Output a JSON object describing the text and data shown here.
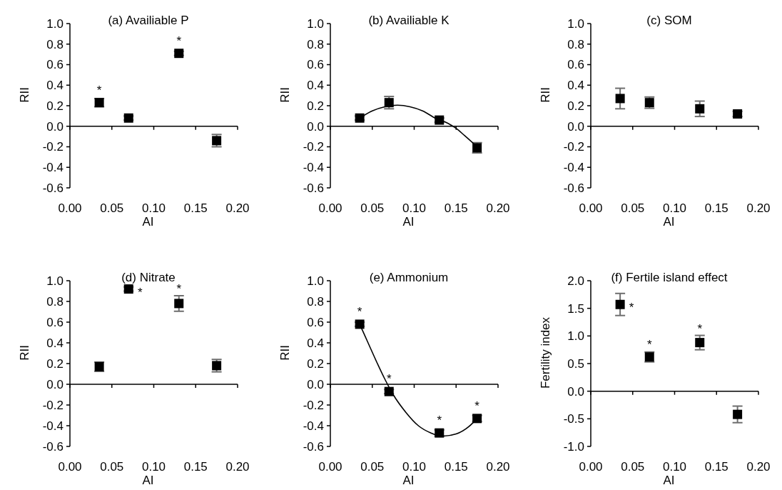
{
  "chart_data": [
    {
      "type": "scatter",
      "title": "(a) Availiable P",
      "xlabel": "AI",
      "ylabel": "RII",
      "marker": "square",
      "x": [
        0.035,
        0.07,
        0.13,
        0.175
      ],
      "series": [
        {
          "color": "#000000",
          "values": [
            0.23,
            0.08,
            0.71,
            -0.14
          ],
          "errors": [
            0.04,
            0.02,
            0.02,
            0.06
          ]
        }
      ],
      "xlim": [
        0,
        0.2
      ],
      "xticks": [
        {
          "value": 0,
          "label": "0.00"
        },
        {
          "value": 0.05,
          "label": "0.05"
        },
        {
          "value": 0.1,
          "label": "0.10"
        },
        {
          "value": 0.15,
          "label": "0.15"
        },
        {
          "value": 0.2,
          "label": "0.20"
        }
      ],
      "ylim": [
        -0.6,
        1
      ],
      "yticks": [
        {
          "value": -0.6,
          "label": "-0.6"
        },
        {
          "value": -0.4,
          "label": "-0.4"
        },
        {
          "value": -0.2,
          "label": "-0.2"
        },
        {
          "value": 0,
          "label": "0.0"
        },
        {
          "value": 0.2,
          "label": "0.2"
        },
        {
          "value": 0.4,
          "label": "0.4"
        },
        {
          "value": 0.6,
          "label": "0.6"
        },
        {
          "value": 0.8,
          "label": "0.8"
        },
        {
          "value": 1,
          "label": "1.0"
        }
      ],
      "annotations": [
        {
          "text": "*",
          "x": 0.035,
          "y": 0.23
        },
        {
          "text": "*",
          "x": 0.13,
          "y": 0.71
        }
      ]
    },
    {
      "type": "scatter",
      "title": "(b) Availiable K",
      "xlabel": "AI",
      "ylabel": "RII",
      "marker": "square",
      "x": [
        0.035,
        0.07,
        0.13,
        0.175
      ],
      "series": [
        {
          "color": "#000000",
          "values": [
            0.08,
            0.23,
            0.06,
            -0.21
          ],
          "errors": [
            0.02,
            0.06,
            0.02,
            0.05
          ]
        },
        {
          "type": "line",
          "marker": "none",
          "color": "#000000",
          "x": [
            0.035,
            0.05,
            0.065,
            0.08,
            0.095,
            0.11,
            0.125,
            0.14,
            0.15,
            0.16,
            0.175
          ],
          "values": [
            0.08,
            0.15,
            0.19,
            0.205,
            0.19,
            0.15,
            0.08,
            0.03,
            -0.02,
            -0.09,
            -0.2
          ]
        }
      ],
      "xlim": [
        0,
        0.2
      ],
      "xticks": [
        {
          "value": 0,
          "label": "0.00"
        },
        {
          "value": 0.05,
          "label": "0.05"
        },
        {
          "value": 0.1,
          "label": "0.10"
        },
        {
          "value": 0.15,
          "label": "0.15"
        },
        {
          "value": 0.2,
          "label": "0.20"
        }
      ],
      "ylim": [
        -0.6,
        1
      ],
      "yticks": [
        {
          "value": -0.6,
          "label": "-0.6"
        },
        {
          "value": -0.4,
          "label": "-0.4"
        },
        {
          "value": -0.2,
          "label": "-0.2"
        },
        {
          "value": 0,
          "label": "0.0"
        },
        {
          "value": 0.2,
          "label": "0.2"
        },
        {
          "value": 0.4,
          "label": "0.4"
        },
        {
          "value": 0.6,
          "label": "0.6"
        },
        {
          "value": 0.8,
          "label": "0.8"
        },
        {
          "value": 1,
          "label": "1.0"
        }
      ]
    },
    {
      "type": "scatter",
      "title": "(c) SOM",
      "xlabel": "AI",
      "ylabel": "RII",
      "marker": "square",
      "x": [
        0.035,
        0.07,
        0.13,
        0.175
      ],
      "series": [
        {
          "color": "#000000",
          "values": [
            0.27,
            0.23,
            0.17,
            0.12
          ],
          "errors": [
            0.1,
            0.055,
            0.075,
            0.025
          ]
        }
      ],
      "xlim": [
        0,
        0.2
      ],
      "xticks": [
        {
          "value": 0,
          "label": "0.00"
        },
        {
          "value": 0.05,
          "label": "0.05"
        },
        {
          "value": 0.1,
          "label": "0.10"
        },
        {
          "value": 0.15,
          "label": "0.15"
        },
        {
          "value": 0.2,
          "label": "0.20"
        }
      ],
      "ylim": [
        -0.6,
        1
      ],
      "yticks": [
        {
          "value": -0.6,
          "label": "-0.6"
        },
        {
          "value": -0.4,
          "label": "-0.4"
        },
        {
          "value": -0.2,
          "label": "-0.2"
        },
        {
          "value": 0,
          "label": "0.0"
        },
        {
          "value": 0.2,
          "label": "0.2"
        },
        {
          "value": 0.4,
          "label": "0.4"
        },
        {
          "value": 0.6,
          "label": "0.6"
        },
        {
          "value": 0.8,
          "label": "0.8"
        },
        {
          "value": 1,
          "label": "1.0"
        }
      ]
    },
    {
      "type": "scatter",
      "title": "(d) Nitrate",
      "xlabel": "AI",
      "ylabel": "RII",
      "marker": "square",
      "x": [
        0.035,
        0.07,
        0.13,
        0.175
      ],
      "series": [
        {
          "color": "#000000",
          "values": [
            0.17,
            0.92,
            0.78,
            0.18
          ],
          "errors": [
            0.045,
            0.02,
            0.075,
            0.06
          ]
        }
      ],
      "xlim": [
        0,
        0.2
      ],
      "xticks": [
        {
          "value": 0,
          "label": "0.00"
        },
        {
          "value": 0.05,
          "label": "0.05"
        },
        {
          "value": 0.1,
          "label": "0.10"
        },
        {
          "value": 0.15,
          "label": "0.15"
        },
        {
          "value": 0.2,
          "label": "0.20"
        }
      ],
      "ylim": [
        -0.6,
        1
      ],
      "yticks": [
        {
          "value": -0.6,
          "label": "-0.6"
        },
        {
          "value": -0.4,
          "label": "-0.4"
        },
        {
          "value": -0.2,
          "label": "-0.2"
        },
        {
          "value": 0,
          "label": "0.0"
        },
        {
          "value": 0.2,
          "label": "0.2"
        },
        {
          "value": 0.4,
          "label": "0.4"
        },
        {
          "value": 0.6,
          "label": "0.6"
        },
        {
          "value": 0.8,
          "label": "0.8"
        },
        {
          "value": 1,
          "label": "1.0"
        }
      ],
      "annotations": [
        {
          "text": "*",
          "x": 0.07,
          "y": 0.92
        },
        {
          "text": "*",
          "x": 0.13,
          "y": 0.78
        }
      ]
    },
    {
      "type": "scatter",
      "title": "(e) Ammonium",
      "xlabel": "AI",
      "ylabel": "RII",
      "marker": "square",
      "x": [
        0.035,
        0.07,
        0.13,
        0.175
      ],
      "series": [
        {
          "color": "#000000",
          "values": [
            0.58,
            -0.07,
            -0.47,
            -0.33
          ],
          "errors": [
            0.02,
            0.02,
            0.03,
            0.03
          ]
        },
        {
          "type": "line",
          "marker": "none",
          "color": "#000000",
          "x": [
            0.035,
            0.045,
            0.055,
            0.065,
            0.075,
            0.09,
            0.105,
            0.12,
            0.135,
            0.15,
            0.165,
            0.175
          ],
          "values": [
            0.58,
            0.4,
            0.22,
            0.05,
            -0.1,
            -0.27,
            -0.4,
            -0.47,
            -0.5,
            -0.48,
            -0.41,
            -0.33
          ]
        }
      ],
      "xlim": [
        0,
        0.2
      ],
      "xticks": [
        {
          "value": 0,
          "label": "0.00"
        },
        {
          "value": 0.05,
          "label": "0.05"
        },
        {
          "value": 0.1,
          "label": "0.10"
        },
        {
          "value": 0.15,
          "label": "0.15"
        },
        {
          "value": 0.2,
          "label": "0.20"
        }
      ],
      "ylim": [
        -0.6,
        1
      ],
      "yticks": [
        {
          "value": -0.6,
          "label": "-0.6"
        },
        {
          "value": -0.4,
          "label": "-0.4"
        },
        {
          "value": -0.2,
          "label": "-0.2"
        },
        {
          "value": 0,
          "label": "0.0"
        },
        {
          "value": 0.2,
          "label": "0.2"
        },
        {
          "value": 0.4,
          "label": "0.4"
        },
        {
          "value": 0.6,
          "label": "0.6"
        },
        {
          "value": 0.8,
          "label": "0.8"
        },
        {
          "value": 1,
          "label": "1.0"
        }
      ],
      "annotations": [
        {
          "text": "*",
          "x": 0.035,
          "y": 0.58
        },
        {
          "text": "*",
          "x": 0.07,
          "y": -0.07
        },
        {
          "text": "*",
          "x": 0.13,
          "y": -0.47
        },
        {
          "text": "*",
          "x": 0.175,
          "y": -0.33
        }
      ]
    },
    {
      "type": "scatter",
      "title": "(f) Fertile island effect",
      "xlabel": "AI",
      "ylabel": "Fertility index",
      "marker": "square",
      "x": [
        0.035,
        0.07,
        0.13,
        0.175
      ],
      "series": [
        {
          "color": "#000000",
          "values": [
            1.57,
            0.62,
            0.88,
            -0.42
          ],
          "errors": [
            0.2,
            0.09,
            0.13,
            0.15
          ]
        }
      ],
      "xlim": [
        0,
        0.2
      ],
      "xticks": [
        {
          "value": 0,
          "label": "0.00"
        },
        {
          "value": 0.05,
          "label": "0.05"
        },
        {
          "value": 0.1,
          "label": "0.10"
        },
        {
          "value": 0.15,
          "label": "0.15"
        },
        {
          "value": 0.2,
          "label": "0.20"
        }
      ],
      "ylim": [
        -1,
        2
      ],
      "yticks": [
        {
          "value": -1,
          "label": "-1.0"
        },
        {
          "value": -0.5,
          "label": "-0.5"
        },
        {
          "value": 0,
          "label": "0.0"
        },
        {
          "value": 0.5,
          "label": "0.5"
        },
        {
          "value": 1,
          "label": "1.0"
        },
        {
          "value": 1.5,
          "label": "1.5"
        },
        {
          "value": 2,
          "label": "2.0"
        }
      ],
      "annotations": [
        {
          "text": "*",
          "x": 0.035,
          "y": 1.57
        },
        {
          "text": "*",
          "x": 0.07,
          "y": 0.62
        },
        {
          "text": "*",
          "x": 0.13,
          "y": 0.88
        }
      ]
    }
  ]
}
